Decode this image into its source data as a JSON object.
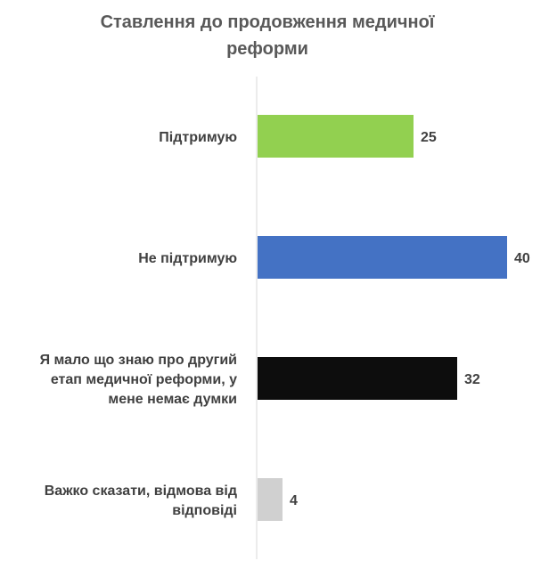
{
  "chart_data": {
    "type": "bar",
    "orientation": "horizontal",
    "title": "Ставлення до продовження медичної реформи",
    "categories": [
      "Підтримую",
      "Не підтримую",
      "Я мало що знаю про другий етап медичної реформи, у мене немає думки",
      "Важко сказати, відмова від відповіді"
    ],
    "values": [
      25,
      40,
      32,
      4
    ],
    "colors": [
      "#92d050",
      "#4472c4",
      "#0d0d0d",
      "#d0d0d0"
    ],
    "xlim": [
      0,
      45
    ],
    "grid": false,
    "legend": "none",
    "data_labels": true
  }
}
